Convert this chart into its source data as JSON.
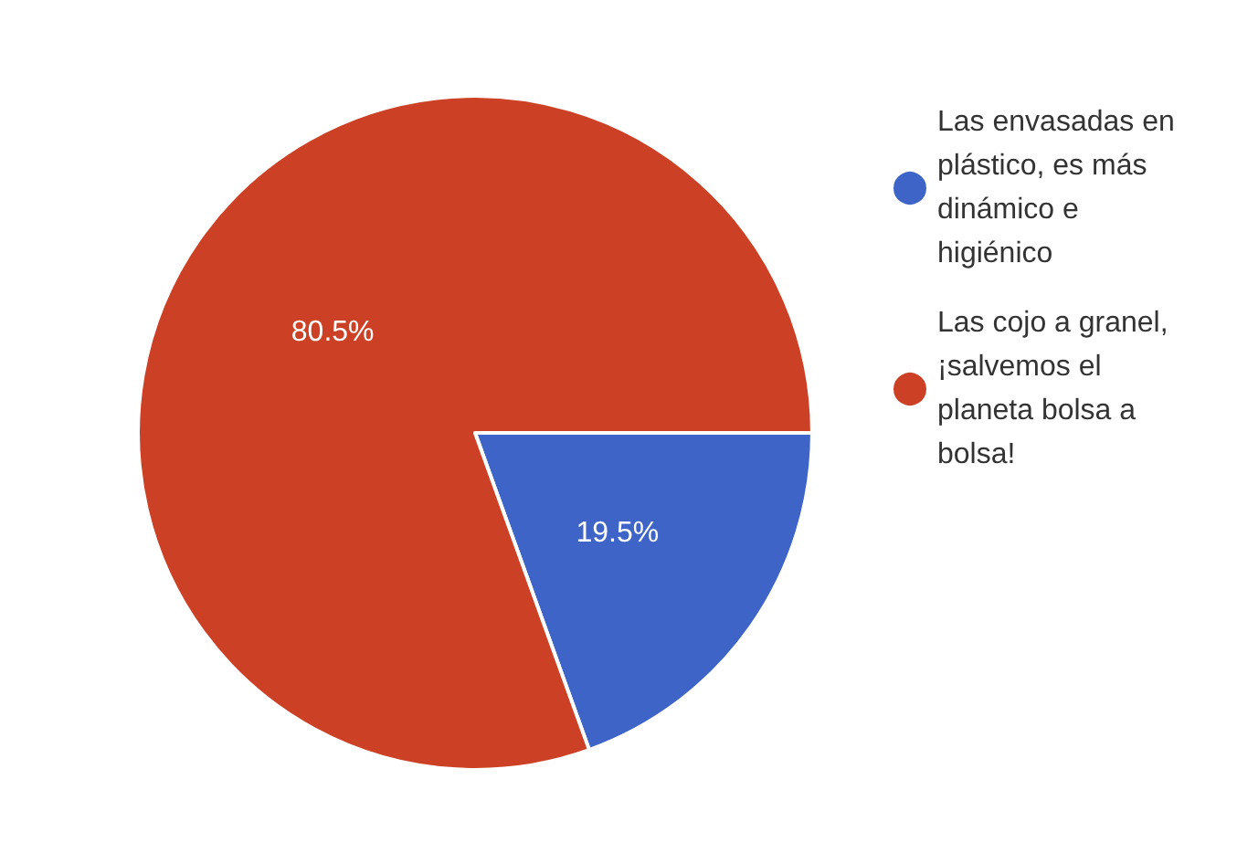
{
  "chart_data": {
    "type": "pie",
    "categories": [
      "Las envasadas en plástico, es más dinámico e higiénico",
      "Las cojo a granel, ¡salvemos el planeta bolsa a bolsa!"
    ],
    "values": [
      19.5,
      80.5
    ],
    "colors": [
      "#3d64c6",
      "#cc4125"
    ],
    "value_labels": [
      "19.5%",
      "80.5%"
    ],
    "legend": "top right"
  }
}
